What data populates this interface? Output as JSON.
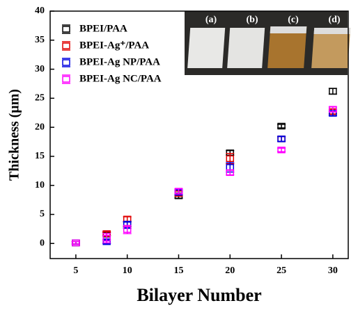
{
  "chart_data": {
    "type": "scatter",
    "x_label": "Bilayer Number",
    "y_label": "Thickness (μm)",
    "xlim": [
      2.5,
      31.5
    ],
    "xticks": [
      5,
      10,
      15,
      20,
      25,
      30
    ],
    "ylim": [
      -2.6,
      40
    ],
    "yticks": [
      0,
      5,
      10,
      15,
      20,
      25,
      30,
      35,
      40
    ],
    "legend": "upper left",
    "inset_labels": [
      "(a)",
      "(b)",
      "(c)",
      "(d)"
    ],
    "series": [
      {
        "name": "BPEI/PAA",
        "color": "#000000",
        "x": [
          5,
          8,
          10,
          15,
          20,
          25,
          30
        ],
        "values": [
          0.1,
          1.6,
          3.3,
          8.2,
          15.6,
          20.2,
          26.2
        ],
        "errors": [
          0.2,
          0.3,
          0.4,
          0.4,
          0.4,
          0.3,
          0.5
        ]
      },
      {
        "name": "BPEI-Ag⁺/PAA",
        "color": "#e00000",
        "x": [
          5,
          8,
          10,
          15,
          20,
          25,
          30
        ],
        "values": [
          0.1,
          1.7,
          4.2,
          8.6,
          14.6,
          18.0,
          22.7
        ],
        "errors": [
          0.2,
          0.3,
          0.4,
          0.4,
          0.9,
          0.4,
          0.4
        ]
      },
      {
        "name": "BPEI-Ag NP/PAA",
        "color": "#0000e0",
        "x": [
          5,
          8,
          10,
          15,
          20,
          25,
          30
        ],
        "values": [
          0.1,
          0.3,
          3.2,
          8.8,
          13.1,
          18.0,
          22.4
        ],
        "errors": [
          0.2,
          0.3,
          0.6,
          0.4,
          0.8,
          0.4,
          0.4
        ]
      },
      {
        "name": "BPEI-Ag NC/PAA",
        "color": "#ff00ff",
        "x": [
          5,
          8,
          10,
          15,
          20,
          25,
          30
        ],
        "values": [
          0.1,
          0.9,
          2.4,
          9.0,
          12.2,
          16.1,
          23.1
        ],
        "errors": [
          0.2,
          0.8,
          0.7,
          0.4,
          0.4,
          0.3,
          0.4
        ]
      }
    ]
  }
}
